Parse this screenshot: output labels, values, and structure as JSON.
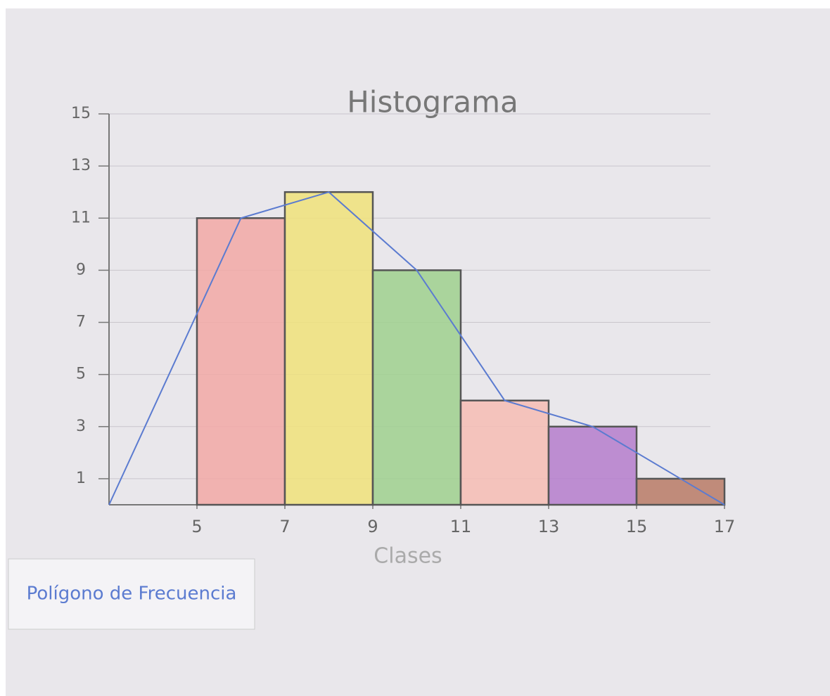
{
  "chart_data": {
    "type": "histogram",
    "title": "Histograma",
    "xlabel": "Clases",
    "bins": [
      5,
      7,
      9,
      11,
      13,
      15,
      17
    ],
    "values": [
      11,
      12,
      9,
      4,
      3,
      1
    ],
    "colors": [
      "#f2a8a6",
      "#f0e27a",
      "#9fd08e",
      "#f6bcb4",
      "#b57ccc",
      "#b87a66"
    ],
    "series": [
      {
        "name": "Polígono de Frecuencia",
        "type": "line",
        "color": "#5b7bd0",
        "x": [
          3,
          6,
          8,
          10,
          12,
          14,
          16,
          17
        ],
        "values": [
          0,
          11,
          12,
          9,
          4,
          3,
          1,
          0
        ]
      }
    ],
    "xlim": [
      3,
      17
    ],
    "ylim": [
      0,
      15
    ],
    "xticks": [
      5,
      7,
      9,
      11,
      13,
      15,
      17
    ],
    "yticks": [
      1,
      3,
      5,
      7,
      9,
      11,
      13,
      15
    ],
    "grid": true,
    "legend": "bottom-left"
  }
}
